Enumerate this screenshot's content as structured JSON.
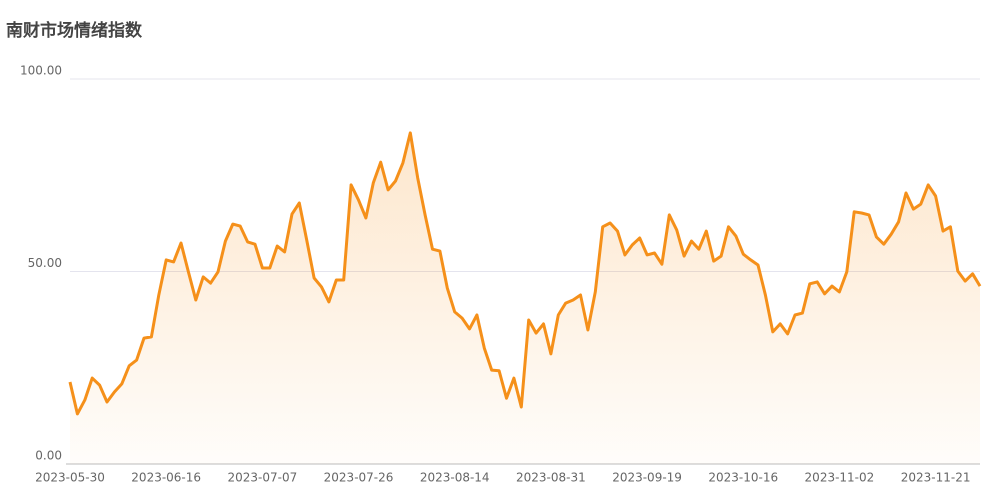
{
  "chart_data": {
    "type": "line",
    "title": "南财市场情绪指数",
    "categories": [
      "2023-05-30",
      null,
      null,
      null,
      null,
      null,
      null,
      null,
      null,
      null,
      null,
      null,
      null,
      "2023-06-16",
      null,
      null,
      null,
      null,
      null,
      null,
      null,
      null,
      null,
      null,
      null,
      null,
      "2023-07-07",
      null,
      null,
      null,
      null,
      null,
      null,
      null,
      null,
      null,
      null,
      null,
      null,
      "2023-07-26",
      null,
      null,
      null,
      null,
      null,
      null,
      null,
      null,
      null,
      null,
      null,
      null,
      "2023-08-14",
      null,
      null,
      null,
      null,
      null,
      null,
      null,
      null,
      null,
      null,
      null,
      null,
      "2023-08-31",
      null,
      null,
      null,
      null,
      null,
      null,
      null,
      null,
      null,
      null,
      null,
      null,
      "2023-09-19",
      null,
      null,
      null,
      null,
      null,
      null,
      null,
      null,
      null,
      null,
      null,
      null,
      "2023-10-16",
      null,
      null,
      null,
      null,
      null,
      null,
      null,
      null,
      null,
      null,
      null,
      null,
      "2023-11-02",
      null,
      null,
      null,
      null,
      null,
      null,
      null,
      null,
      null,
      null,
      null,
      null,
      "2023-11-21",
      null,
      null,
      null,
      null,
      null,
      null
    ],
    "values": [
      21.3,
      13,
      16.6,
      22.3,
      20.5,
      16.1,
      18.7,
      20.8,
      25.5,
      27,
      32.7,
      33,
      43.9,
      53,
      52.5,
      57.4,
      49.9,
      42.6,
      48.6,
      47,
      49.9,
      57.9,
      62.3,
      61.8,
      57.7,
      57.1,
      50.9,
      50.9,
      56.6,
      55.1,
      64.9,
      67.8,
      58.2,
      48.3,
      46,
      42.1,
      47.8,
      47.8,
      72.5,
      68.6,
      63.9,
      73,
      78.4,
      71.2,
      73.5,
      78.2,
      86,
      74.3,
      64.7,
      55.8,
      55.3,
      45.7,
      39.5,
      37.9,
      35.1,
      38.7,
      30.1,
      24.4,
      24.2,
      17.1,
      22.3,
      14.8,
      37.4,
      34,
      36.4,
      28.6,
      38.7,
      41.8,
      42.6,
      43.9,
      34.8,
      44.7,
      61.6,
      62.6,
      60.5,
      54.3,
      56.9,
      58.7,
      54.3,
      54.8,
      51.9,
      64.7,
      60.8,
      54,
      57.9,
      55.8,
      60.5,
      52.7,
      54,
      61.6,
      59.2,
      54.5,
      53,
      51.7,
      43.9,
      34.3,
      36.4,
      33.8,
      38.7,
      39.2,
      46.8,
      47.3,
      44.2,
      46.2,
      44.7,
      49.9,
      65.5,
      65.2,
      64.7,
      59,
      57.1,
      59.7,
      62.9,
      70.4,
      66.2,
      67.5,
      72.5,
      69.6,
      60.5,
      61.6,
      50.1,
      47.5,
      49.4,
      46.2
    ],
    "color": "#f5901a",
    "ylim": [
      0,
      100
    ],
    "yticks": [
      {
        "value": 0,
        "label": "0.00"
      },
      {
        "value": 50,
        "label": "50.00"
      },
      {
        "value": 100,
        "label": "100.00"
      }
    ],
    "grid": true
  }
}
